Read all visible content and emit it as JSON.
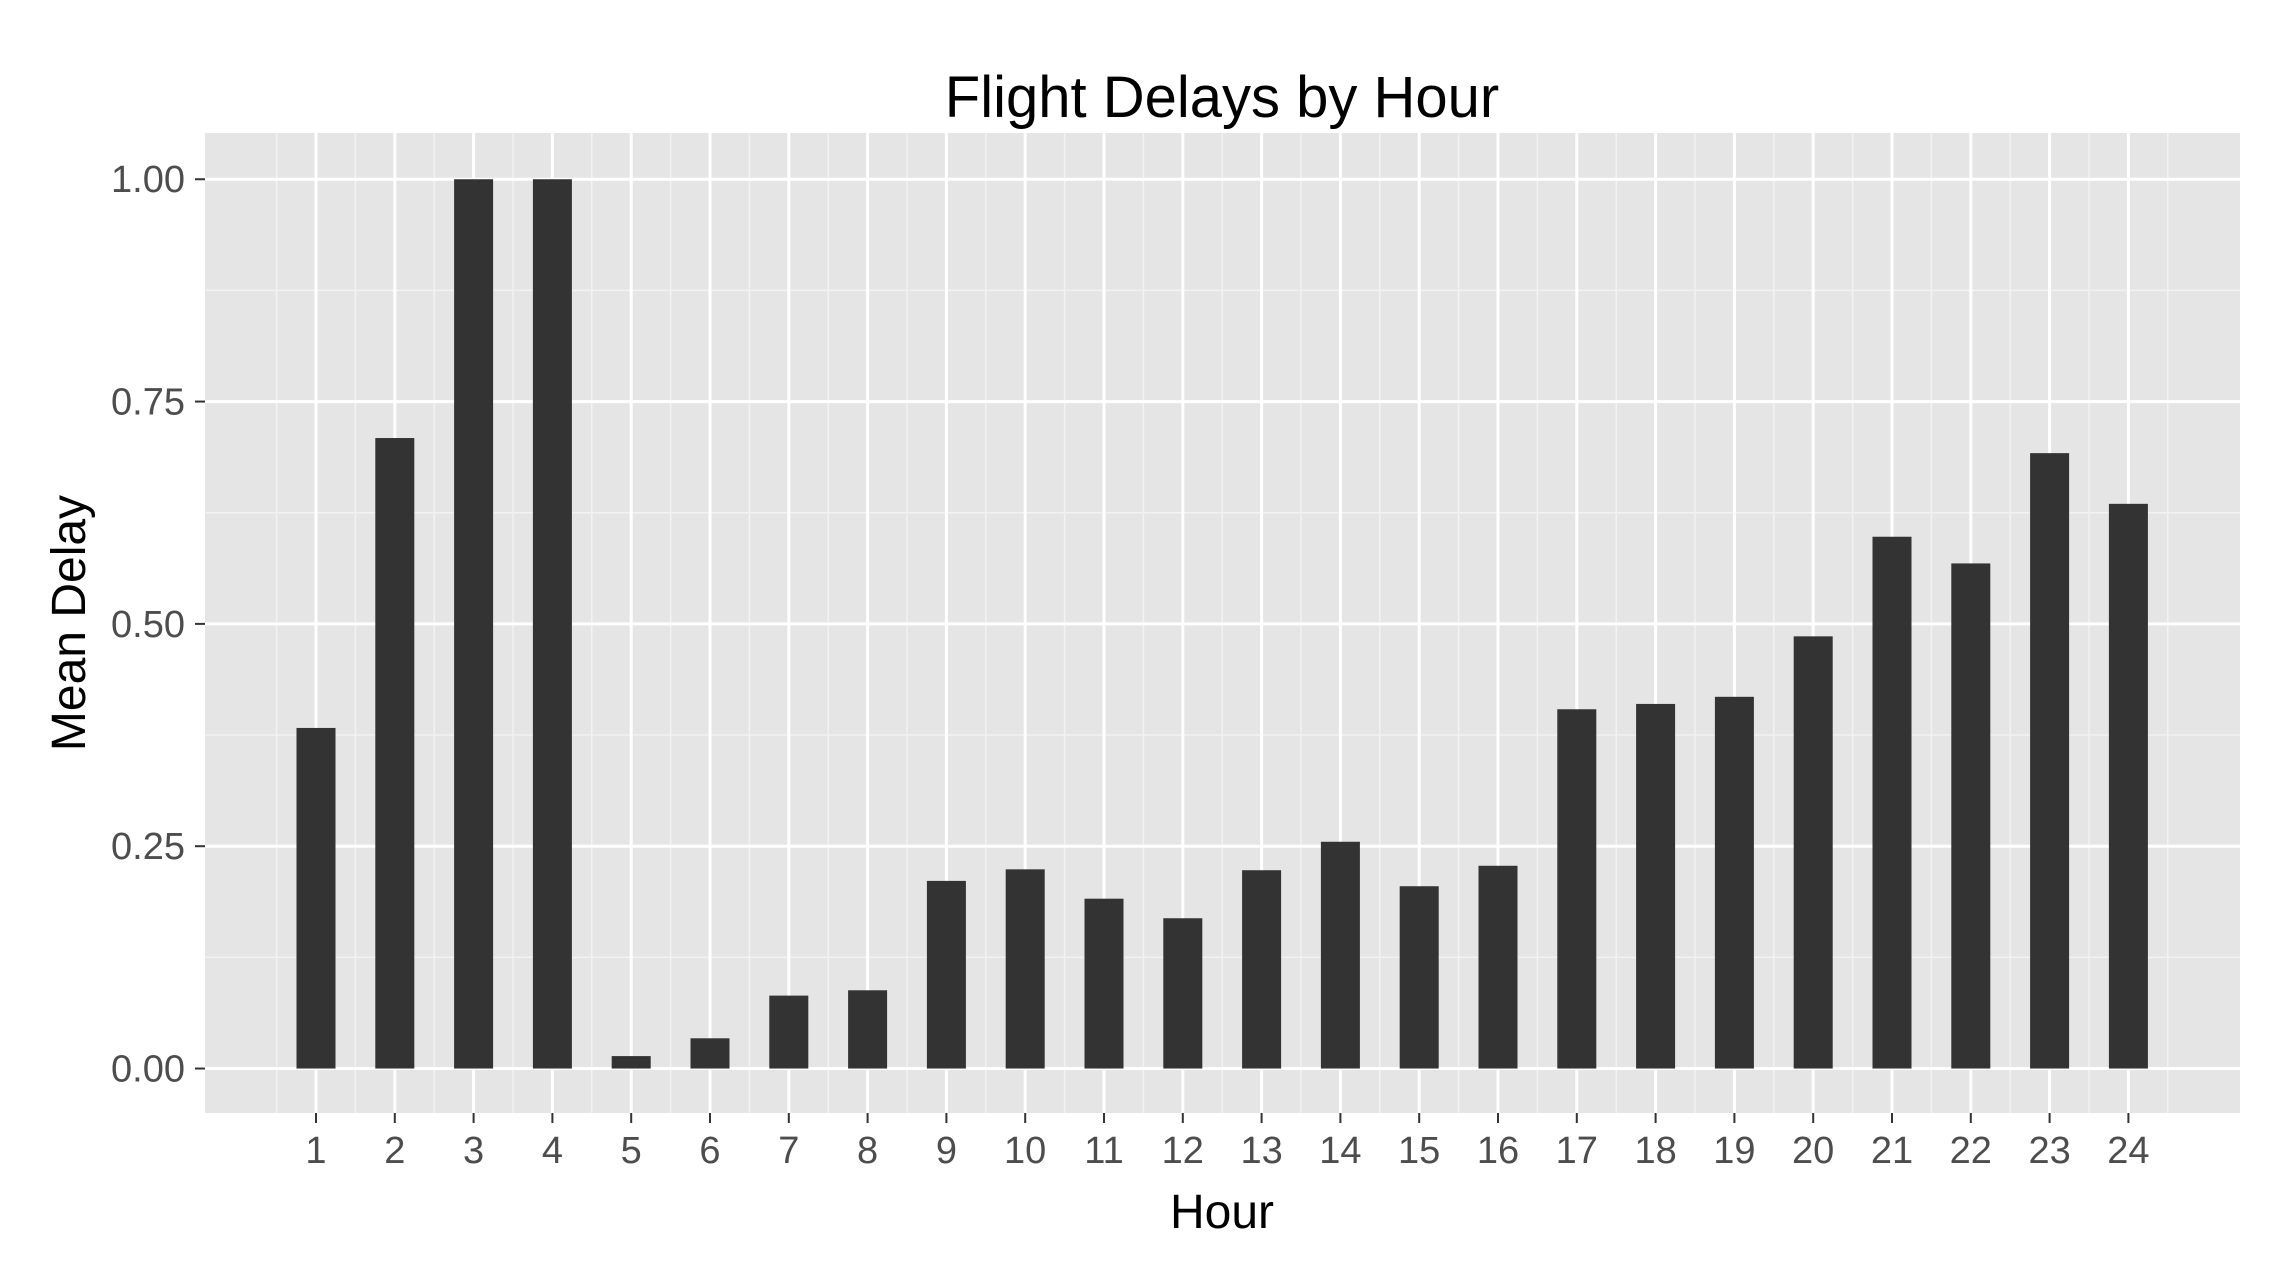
{
  "chart_data": {
    "type": "bar",
    "title": "Flight Delays by Hour",
    "xlabel": "Hour",
    "ylabel": "Mean Delay",
    "categories": [
      "1",
      "2",
      "3",
      "4",
      "5",
      "6",
      "7",
      "8",
      "9",
      "10",
      "11",
      "12",
      "13",
      "14",
      "15",
      "16",
      "17",
      "18",
      "19",
      "20",
      "21",
      "22",
      "23",
      "24"
    ],
    "values": [
      0.383,
      0.709,
      1.0,
      1.0,
      0.014,
      0.034,
      0.082,
      0.088,
      0.211,
      0.224,
      0.191,
      0.169,
      0.223,
      0.255,
      0.205,
      0.228,
      0.404,
      0.41,
      0.418,
      0.486,
      0.598,
      0.568,
      0.692,
      0.635
    ],
    "ylim": [
      -0.05,
      1.052
    ],
    "yticks": [
      "0.00",
      "0.25",
      "0.50",
      "0.75",
      "1.00"
    ],
    "grid": true,
    "legend": "none",
    "colors": {
      "bar": "#333333",
      "panel": "#e5e5e5",
      "grid_major": "#ffffff",
      "grid_minor": "#f2f2f2",
      "tick_text": "#4d4d4d"
    }
  }
}
